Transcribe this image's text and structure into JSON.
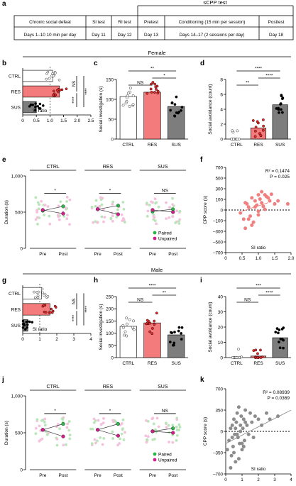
{
  "panel_letters": [
    "a",
    "b",
    "c",
    "d",
    "e",
    "f",
    "g",
    "h",
    "i",
    "j",
    "k"
  ],
  "sections": {
    "female": "Female",
    "male": "Male"
  },
  "timeline": {
    "group_header": "sCPP test",
    "headers": [
      "Chronic social defeat",
      "SI test",
      "RI test",
      "Pretest",
      "Conditioning (15 min per session)",
      "Posttest"
    ],
    "days": [
      "Days 1–10 10 min per day",
      "Day 11",
      "Day 12",
      "Day 13",
      "Days 14–17 (2 sessions per day)",
      "Day 18"
    ]
  },
  "colors": {
    "ctrl": "#ffffff",
    "res": "#f47b7b",
    "res_dot": "#e8282b",
    "sus": "#7d7d7d",
    "paired": "#2db34a",
    "unpaired": "#d11f8a",
    "paired_light": "#b9e6b9",
    "unpaired_light": "#f4c2dc",
    "scatter_f": "#f08080",
    "scatter_m": "#8c8c8c"
  },
  "chart_data": [
    {
      "panel": "b",
      "type": "bar",
      "orientation": "horizontal",
      "categories": [
        "CTRL",
        "RES",
        "SUS"
      ],
      "values": [
        1.1,
        1.35,
        0.5
      ],
      "xlabel": "SI ratio",
      "xlim": [
        0,
        2.5
      ],
      "xticks": [
        "0",
        "0.5",
        "1.0",
        "1.5",
        "2.0",
        "2.5"
      ],
      "significance": [
        "NS",
        "****",
        "****"
      ]
    },
    {
      "panel": "c",
      "type": "bar",
      "categories": [
        "CTRL",
        "RES",
        "SUS"
      ],
      "values": [
        107,
        118,
        82
      ],
      "ylabel": "Social investigation (s)",
      "ylim": [
        0,
        150
      ],
      "yticks": [
        "0",
        "50",
        "100",
        "150"
      ],
      "significance": [
        "NS",
        "*",
        "**"
      ]
    },
    {
      "panel": "d",
      "type": "bar",
      "categories": [
        "CTRL",
        "RES",
        "SUS"
      ],
      "values": [
        0,
        1.5,
        4.6
      ],
      "ylabel": "Social avoidance (count)",
      "ylim": [
        0,
        8
      ],
      "yticks": [
        "0",
        "2",
        "4",
        "6",
        "8"
      ],
      "significance": [
        "**",
        "****",
        "****"
      ]
    },
    {
      "panel": "e",
      "type": "line",
      "ylabel": "Duration (s)",
      "ylim": [
        0,
        1000
      ],
      "yticks": [
        "0",
        "500",
        "1,000"
      ],
      "groups": [
        "CTRL",
        "RES",
        "SUS"
      ],
      "x": [
        "Pre",
        "Post"
      ],
      "significance": [
        "*",
        "*",
        "NS"
      ],
      "legend": [
        "Paired",
        "Unpaired"
      ],
      "series": [
        {
          "name": "Paired",
          "values": [
            [
              520,
              580
            ],
            [
              540,
              590
            ],
            [
              510,
              540
            ]
          ]
        },
        {
          "name": "Unpaired",
          "values": [
            [
              530,
              480
            ],
            [
              540,
              470
            ],
            [
              530,
              500
            ]
          ]
        }
      ]
    },
    {
      "panel": "f",
      "type": "scatter",
      "annotation": [
        "R² = 0.1474",
        "P = 0.025"
      ],
      "xlabel": "SI ratio",
      "ylabel": "CPP score (s)",
      "xlim": [
        0,
        2
      ],
      "ylim": [
        -700,
        700
      ],
      "xticks": [
        "0",
        "0.5",
        "1.0",
        "1.5",
        "2.0"
      ],
      "yticks": [
        "700",
        "500",
        "300",
        "100",
        "0",
        "–100",
        "–300",
        "–500",
        "–700"
      ],
      "fit": [
        [
          0.5,
          -20
        ],
        [
          1.3,
          120
        ]
      ],
      "x": [
        0.45,
        0.55,
        0.6,
        0.65,
        0.7,
        0.75,
        0.8,
        0.85,
        0.9,
        0.95,
        1.0,
        1.0,
        1.05,
        1.1,
        1.1,
        1.15,
        1.2,
        1.25,
        1.3,
        1.35,
        1.4,
        1.5,
        1.6,
        1.9,
        0.7,
        0.9,
        1.2,
        0.6,
        0.8,
        1.0
      ],
      "y": [
        -50,
        -150,
        -300,
        100,
        50,
        -100,
        200,
        -200,
        150,
        80,
        250,
        -20,
        180,
        300,
        120,
        60,
        250,
        220,
        200,
        150,
        260,
        100,
        150,
        100,
        -150,
        50,
        10,
        120,
        -250,
        -80
      ]
    },
    {
      "panel": "g",
      "type": "bar",
      "orientation": "horizontal",
      "categories": [
        "CTRL",
        "RES",
        "SUS"
      ],
      "values": [
        1.1,
        1.6,
        0.3
      ],
      "xlabel": "SI ratio",
      "xlim": [
        0,
        4
      ],
      "xticks": [
        "0",
        "1",
        "2",
        "3",
        "4"
      ],
      "significance": [
        "NS",
        "****",
        "****"
      ]
    },
    {
      "panel": "h",
      "type": "bar",
      "categories": [
        "CTRL",
        "RES",
        "SUS"
      ],
      "values": [
        128,
        142,
        93
      ],
      "ylabel": "Social investigation (s)",
      "ylim": [
        0,
        250
      ],
      "yticks": [
        "0",
        "50",
        "100",
        "150",
        "200",
        "250"
      ],
      "significance": [
        "NS",
        "**",
        "****"
      ]
    },
    {
      "panel": "i",
      "type": "bar",
      "categories": [
        "CTRL",
        "RES",
        "SUS"
      ],
      "values": [
        0,
        1,
        13
      ],
      "ylabel": "Social avoidance (count)",
      "ylim": [
        0,
        40
      ],
      "yticks": [
        "0",
        "10",
        "20",
        "30",
        "40"
      ],
      "significance": [
        "NS",
        "****",
        "***"
      ]
    },
    {
      "panel": "j",
      "type": "line",
      "ylabel": "Duration (s)",
      "ylim": [
        0,
        1000
      ],
      "yticks": [
        "0",
        "500",
        "1,000"
      ],
      "groups": [
        "CTRL",
        "RES",
        "SUS"
      ],
      "x": [
        "Pre",
        "Post"
      ],
      "significance": [
        "*",
        "*",
        "NS"
      ],
      "legend": [
        "Paired",
        "Unpaired"
      ],
      "series": [
        {
          "name": "Paired",
          "values": [
            [
              540,
              620
            ],
            [
              540,
              620
            ],
            [
              520,
              560
            ]
          ]
        },
        {
          "name": "Unpaired",
          "values": [
            [
              540,
              450
            ],
            [
              540,
              460
            ],
            [
              520,
              500
            ]
          ]
        }
      ]
    },
    {
      "panel": "k",
      "type": "scatter",
      "annotation": [
        "R² = 0.08939",
        "P = 0.0369"
      ],
      "xlabel": "SI ratio",
      "ylabel": "CPP score (s)",
      "xlim": [
        0,
        4
      ],
      "ylim": [
        -700,
        700
      ],
      "xticks": [
        "0",
        "1",
        "2",
        "3",
        "4"
      ],
      "yticks": [
        "700",
        "350",
        "0",
        "–350",
        "–700"
      ],
      "fit": [
        [
          0,
          -200
        ],
        [
          4,
          350
        ]
      ],
      "x": [
        0.1,
        0.2,
        0.3,
        0.35,
        0.4,
        0.45,
        0.5,
        0.55,
        0.6,
        0.65,
        0.7,
        0.75,
        0.8,
        0.85,
        0.9,
        0.95,
        1.0,
        1.05,
        1.1,
        1.15,
        1.2,
        1.3,
        1.4,
        1.5,
        1.6,
        1.7,
        1.8,
        2.0,
        2.2,
        2.5,
        2.7,
        3.2,
        0.3,
        0.5,
        0.6,
        0.8,
        1.0,
        1.2,
        0.4,
        0.9,
        1.1,
        0.7
      ],
      "y": [
        -300,
        -150,
        50,
        -400,
        100,
        -250,
        200,
        -50,
        -500,
        150,
        300,
        -100,
        400,
        -200,
        100,
        250,
        -300,
        50,
        200,
        -150,
        350,
        100,
        -50,
        300,
        150,
        -100,
        250,
        200,
        100,
        300,
        200,
        250,
        -600,
        -350,
        50,
        -450,
        -200,
        150,
        -100,
        0,
        -250,
        -50
      ]
    }
  ]
}
